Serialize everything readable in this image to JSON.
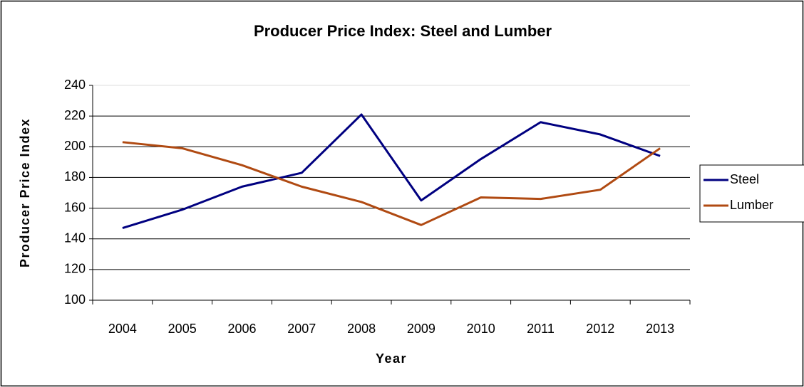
{
  "chart_data": {
    "type": "line",
    "title": "Producer Price Index: Steel and Lumber",
    "x_label": "Year",
    "y_label": "Producer Price Index",
    "categories": [
      "2004",
      "2005",
      "2006",
      "2007",
      "2008",
      "2009",
      "2010",
      "2011",
      "2012",
      "2013"
    ],
    "series": [
      {
        "name": "Steel",
        "color": "#000080",
        "values": [
          147,
          159,
          174,
          183,
          221,
          165,
          192,
          216,
          208,
          194
        ]
      },
      {
        "name": "Lumber",
        "color": "#b04a12",
        "values": [
          203,
          199,
          188,
          174,
          164,
          149,
          167,
          166,
          172,
          199
        ]
      }
    ],
    "ylim": [
      100,
      240
    ],
    "yticks": [
      100,
      120,
      140,
      160,
      180,
      200,
      220,
      240
    ],
    "grid": true,
    "legend": "right"
  }
}
